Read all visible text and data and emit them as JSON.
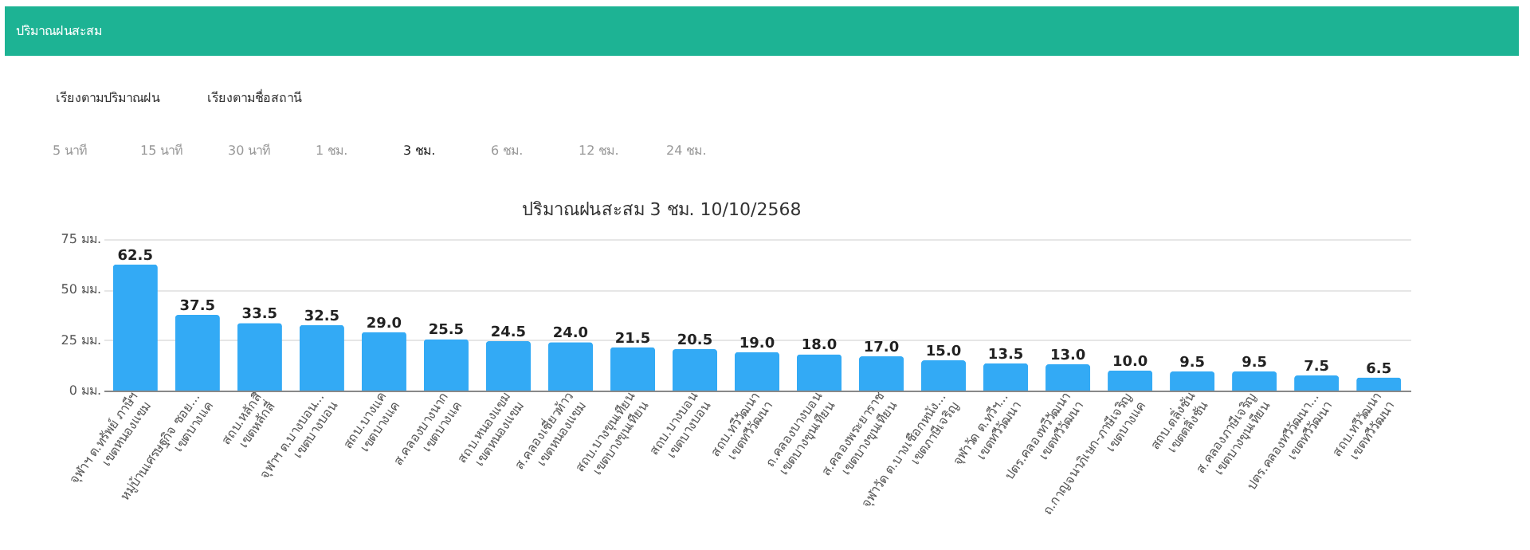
{
  "chart_data": {
    "type": "bar",
    "title": "ปริมาณฝนสะสม 3 ชม. 10/10/2568",
    "annotations": [
      "ปริมาณฝนสะสม",
      "เรียงตามปริมาณฝน",
      "เรียงตามชื่อสถานี",
      "5 นาที",
      "15 นาที",
      "30 นาที",
      "1 ชม.",
      "3 ชม.",
      "6 ชม.",
      "12 ชม.",
      "24 ชม."
    ],
    "categories": [
      "จุฬาฯ ต.ทรัพย์ ภาษีฯ\nเขตหนองแขม",
      "หมู่บ้านเศรษฐกิจ ซอย...\nเขตบางแค",
      "สถบ.หลักสี่\nเขตหลักสี่",
      "จุฬาฯ ต.บางบอน...\nเขตบางบอน",
      "สถบ.บางแค\nเขตบางแค",
      "ส.คลองบางนาก\nเขตบางแค",
      "สถบ.หนองแขม\nเขตหนองแขม",
      "ส.คลองเชี่ยวท้าว\nเขตหนองแขม",
      "สถบ.บางขุนเทียน\nเขตบางขุนเทียน",
      "สถบ.บางบอน\nเขตบางบอน",
      "สถบ.ทวีวัฒนา\nเขตทวีวัฒนา",
      "ถ.คลองบางบอน\nเขตบางขุนเทียน",
      "ส.คลองพระยาราช\nเขตบางขุนเทียน",
      "จุฬาวัด ต.บางเชือกหนัง...\nเขตภาษีเจริญ",
      "จุฬาวัด ต.ทวีฯ...\nเขตทวีวัฒนา",
      "ปตร.คลองทวีวัฒนา\nเขตทวีวัฒนา",
      "ถ.กาญจนาภิเษก-ภาษีเจริญ\nเขตบางแค",
      "สถบ.ตลิ่งชัน\nเขตตลิ่งชัน",
      "ส.คลองภาษีเจริญ\nเขตบางขุนเทียน",
      "ปตร.คลองทวีวัฒนา...\nเขตทวีวัฒนา",
      "สถบ.ทวีวัฒนา\nเขตทวีวัฒนา"
    ],
    "values": [
      62.5,
      37.5,
      33.5,
      32.5,
      29.0,
      25.5,
      24.5,
      24.0,
      21.5,
      20.5,
      19.0,
      18.0,
      17.0,
      15.0,
      13.5,
      13.0,
      10.0,
      9.5,
      9.5,
      7.5,
      6.5
    ],
    "color": "#33aaf5",
    "ylim": [
      0,
      75
    ],
    "yticks": [
      {
        "value": 0,
        "label": "0 มม."
      },
      {
        "value": 25,
        "label": "25 มม."
      },
      {
        "value": 50,
        "label": "50 มม."
      },
      {
        "value": 75,
        "label": "75 มม."
      }
    ],
    "value_labels": [
      "62.5",
      "37.5",
      "33.5",
      "32.5",
      "29.0",
      "25.5",
      "24.5",
      "24.0",
      "21.5",
      "20.5",
      "19.0",
      "18.0",
      "17.0",
      "15.0",
      "13.5",
      "13.0",
      "10.0",
      "9.5",
      "9.5",
      "7.5",
      "6.5"
    ],
    "grid": "y"
  }
}
